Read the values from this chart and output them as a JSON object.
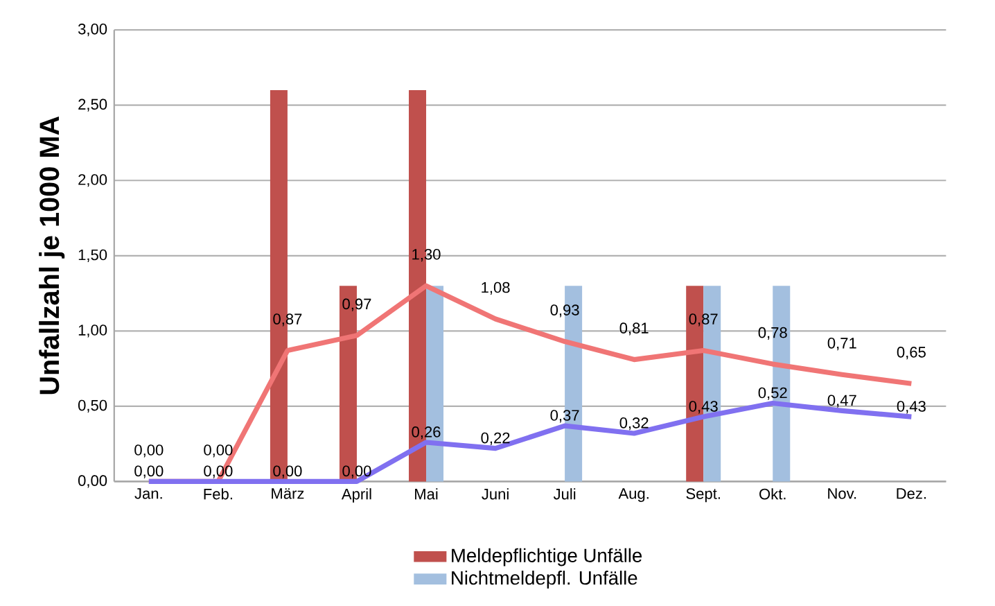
{
  "chart_data": {
    "type": "bar",
    "ylabel": "Unfallzahl je 1000 MA",
    "categories": [
      "Jan.",
      "Feb.",
      "März",
      "April",
      "Mai",
      "Juni",
      "Juli",
      "Aug.",
      "Sept.",
      "Okt.",
      "Nov.",
      "Dez."
    ],
    "series": [
      {
        "name": "Meldepflichtige Unfälle",
        "color": "#c0504d",
        "values": [
          null,
          null,
          2.6,
          1.3,
          2.6,
          null,
          null,
          null,
          1.3,
          null,
          null,
          null
        ]
      },
      {
        "name": "Nichtmeldepfl. Unfälle",
        "color": "#a3bfdf",
        "values": [
          null,
          null,
          null,
          null,
          1.3,
          null,
          1.3,
          null,
          1.3,
          1.3,
          null,
          null
        ]
      },
      {
        "type": "line",
        "color": "#f07575",
        "values": [
          0,
          0,
          0.87,
          0.97,
          1.3,
          1.08,
          0.93,
          0.81,
          0.87,
          0.78,
          0.71,
          0.65
        ],
        "value_labels": [
          "0,00",
          "0,00",
          "0,87",
          "0,97",
          "1,30",
          "1,08",
          "0,93",
          "0,81",
          "0,87",
          "0,78",
          "0,71",
          "0,65"
        ]
      },
      {
        "type": "line",
        "color": "#8070f0",
        "values": [
          0,
          0,
          0,
          0,
          0.26,
          0.22,
          0.37,
          0.32,
          0.43,
          0.52,
          0.47,
          0.43
        ],
        "value_labels": [
          "0,00",
          "0,00",
          "0,00",
          "0,00",
          "0,26",
          "0,22",
          "0,37",
          "0,32",
          "0,43",
          "0,52",
          "0,47",
          "0,43"
        ]
      }
    ],
    "ylim": [
      0,
      3
    ],
    "yticks": [
      {
        "value": 0,
        "label": "0,00"
      },
      {
        "value": 0.5,
        "label": "0,50"
      },
      {
        "value": 1,
        "label": "1,00"
      },
      {
        "value": 1.5,
        "label": "1,50"
      },
      {
        "value": 2,
        "label": "2,00"
      },
      {
        "value": 2.5,
        "label": "2,50"
      },
      {
        "value": 3,
        "label": "3,00"
      }
    ],
    "grid": "y",
    "legend": "bottom"
  }
}
